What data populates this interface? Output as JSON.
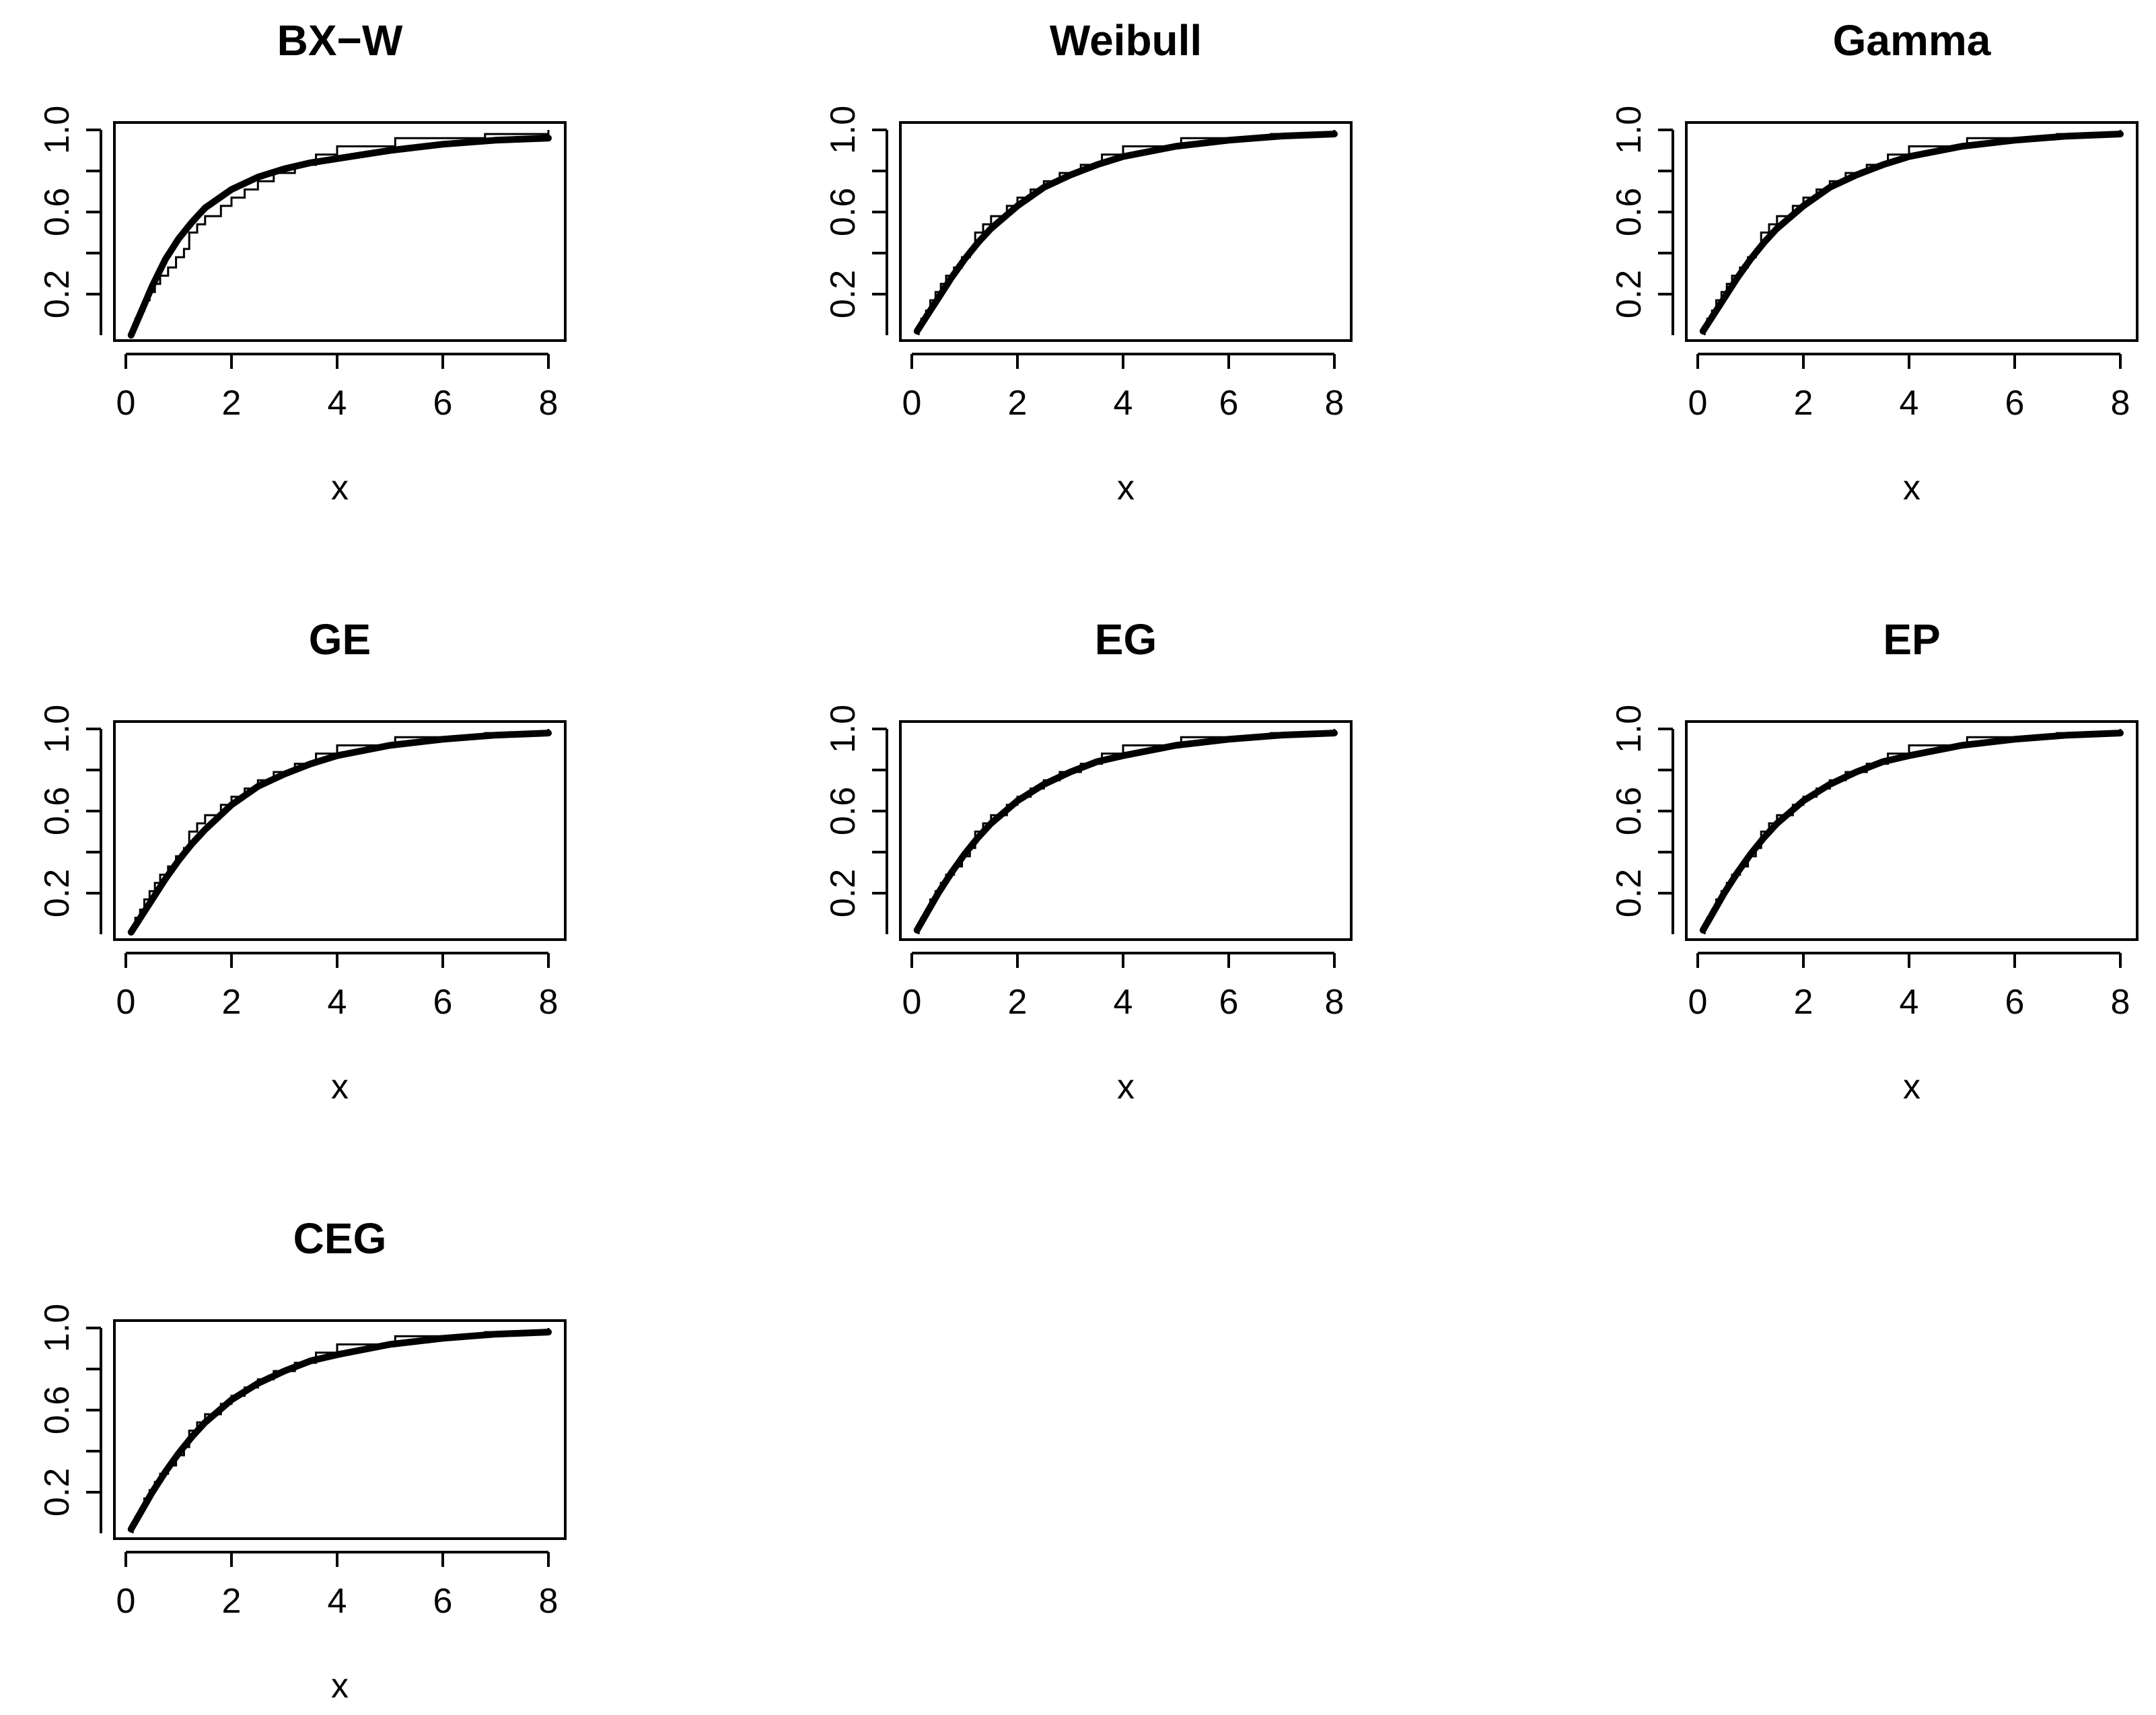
{
  "figure": {
    "panel_count": 7,
    "layout": "3x3 grid (7 panels)"
  },
  "chart_data": [
    {
      "type": "line",
      "title": "BX−W",
      "xlabel": "x",
      "ylabel": "",
      "xlim": [
        0,
        8
      ],
      "ylim": [
        0,
        1
      ],
      "xticks": [
        "0",
        "2",
        "4",
        "6",
        "8"
      ],
      "yticks": [
        "0.2",
        "0.6",
        "1.0"
      ],
      "series": [
        {
          "style": "empirical step",
          "x": [
            0.13,
            0.18,
            0.27,
            0.35,
            0.45,
            0.55,
            0.65,
            0.8,
            0.95,
            1.1,
            1.2,
            1.35,
            1.5,
            1.8,
            2.0,
            2.25,
            2.5,
            2.8,
            3.2,
            3.6,
            4.0,
            5.1,
            6.8,
            8.0
          ],
          "y": [
            0.04,
            0.08,
            0.12,
            0.17,
            0.21,
            0.25,
            0.29,
            0.33,
            0.38,
            0.42,
            0.5,
            0.54,
            0.58,
            0.63,
            0.67,
            0.71,
            0.75,
            0.79,
            0.83,
            0.88,
            0.92,
            0.96,
            0.98,
            1.0
          ]
        },
        {
          "style": "fitted CDF",
          "x": [
            0.1,
            0.3,
            0.5,
            0.75,
            1.0,
            1.25,
            1.5,
            2.0,
            2.5,
            3.0,
            3.5,
            4.0,
            5.0,
            6.0,
            7.0,
            8.0
          ],
          "y": [
            0.0,
            0.12,
            0.24,
            0.37,
            0.47,
            0.55,
            0.62,
            0.71,
            0.77,
            0.81,
            0.84,
            0.86,
            0.9,
            0.93,
            0.95,
            0.96
          ]
        }
      ]
    },
    {
      "type": "line",
      "title": "Weibull",
      "xlabel": "x",
      "ylabel": "",
      "xlim": [
        0,
        8
      ],
      "ylim": [
        0,
        1
      ],
      "xticks": [
        "0",
        "2",
        "4",
        "6",
        "8"
      ],
      "yticks": [
        "0.2",
        "0.6",
        "1.0"
      ],
      "series": [
        {
          "style": "empirical step",
          "x": [
            0.13,
            0.18,
            0.27,
            0.35,
            0.45,
            0.55,
            0.65,
            0.8,
            0.95,
            1.1,
            1.2,
            1.35,
            1.5,
            1.8,
            2.0,
            2.25,
            2.5,
            2.8,
            3.2,
            3.6,
            4.0,
            5.1,
            6.8,
            8.0
          ],
          "y": [
            0.04,
            0.08,
            0.12,
            0.17,
            0.21,
            0.25,
            0.29,
            0.33,
            0.38,
            0.42,
            0.5,
            0.54,
            0.58,
            0.63,
            0.67,
            0.71,
            0.75,
            0.79,
            0.83,
            0.88,
            0.92,
            0.96,
            0.98,
            1.0
          ]
        },
        {
          "style": "fitted CDF",
          "x": [
            0.1,
            0.3,
            0.5,
            0.75,
            1.0,
            1.25,
            1.5,
            2.0,
            2.5,
            3.0,
            3.5,
            4.0,
            5.0,
            6.0,
            7.0,
            8.0
          ],
          "y": [
            0.02,
            0.1,
            0.18,
            0.28,
            0.37,
            0.45,
            0.52,
            0.63,
            0.72,
            0.78,
            0.83,
            0.87,
            0.92,
            0.95,
            0.97,
            0.98
          ]
        }
      ]
    },
    {
      "type": "line",
      "title": "Gamma",
      "xlabel": "x",
      "ylabel": "",
      "xlim": [
        0,
        8
      ],
      "ylim": [
        0,
        1
      ],
      "xticks": [
        "0",
        "2",
        "4",
        "6",
        "8"
      ],
      "yticks": [
        "0.2",
        "0.6",
        "1.0"
      ],
      "series": [
        {
          "style": "empirical step",
          "x": [
            0.13,
            0.18,
            0.27,
            0.35,
            0.45,
            0.55,
            0.65,
            0.8,
            0.95,
            1.1,
            1.2,
            1.35,
            1.5,
            1.8,
            2.0,
            2.25,
            2.5,
            2.8,
            3.2,
            3.6,
            4.0,
            5.1,
            6.8,
            8.0
          ],
          "y": [
            0.04,
            0.08,
            0.12,
            0.17,
            0.21,
            0.25,
            0.29,
            0.33,
            0.38,
            0.42,
            0.5,
            0.54,
            0.58,
            0.63,
            0.67,
            0.71,
            0.75,
            0.79,
            0.83,
            0.88,
            0.92,
            0.96,
            0.98,
            1.0
          ]
        },
        {
          "style": "fitted CDF",
          "x": [
            0.1,
            0.3,
            0.5,
            0.75,
            1.0,
            1.25,
            1.5,
            2.0,
            2.5,
            3.0,
            3.5,
            4.0,
            5.0,
            6.0,
            7.0,
            8.0
          ],
          "y": [
            0.02,
            0.1,
            0.18,
            0.28,
            0.37,
            0.45,
            0.52,
            0.63,
            0.72,
            0.78,
            0.83,
            0.87,
            0.92,
            0.95,
            0.97,
            0.98
          ]
        }
      ]
    },
    {
      "type": "line",
      "title": "GE",
      "xlabel": "x",
      "ylabel": "",
      "xlim": [
        0,
        8
      ],
      "ylim": [
        0,
        1
      ],
      "xticks": [
        "0",
        "2",
        "4",
        "6",
        "8"
      ],
      "yticks": [
        "0.2",
        "0.6",
        "1.0"
      ],
      "series": [
        {
          "style": "empirical step",
          "x": [
            0.13,
            0.18,
            0.27,
            0.35,
            0.45,
            0.55,
            0.65,
            0.8,
            0.95,
            1.1,
            1.2,
            1.35,
            1.5,
            1.8,
            2.0,
            2.25,
            2.5,
            2.8,
            3.2,
            3.6,
            4.0,
            5.1,
            6.8,
            8.0
          ],
          "y": [
            0.04,
            0.08,
            0.12,
            0.17,
            0.21,
            0.25,
            0.29,
            0.33,
            0.38,
            0.42,
            0.5,
            0.54,
            0.58,
            0.63,
            0.67,
            0.71,
            0.75,
            0.79,
            0.83,
            0.88,
            0.92,
            0.96,
            0.98,
            1.0
          ]
        },
        {
          "style": "fitted CDF",
          "x": [
            0.1,
            0.3,
            0.5,
            0.75,
            1.0,
            1.25,
            1.5,
            2.0,
            2.5,
            3.0,
            3.5,
            4.0,
            5.0,
            6.0,
            7.0,
            8.0
          ],
          "y": [
            0.01,
            0.09,
            0.17,
            0.27,
            0.36,
            0.44,
            0.51,
            0.63,
            0.72,
            0.78,
            0.83,
            0.87,
            0.92,
            0.95,
            0.97,
            0.98
          ]
        }
      ]
    },
    {
      "type": "line",
      "title": "EG",
      "xlabel": "x",
      "ylabel": "",
      "xlim": [
        0,
        8
      ],
      "ylim": [
        0,
        1
      ],
      "xticks": [
        "0",
        "2",
        "4",
        "6",
        "8"
      ],
      "yticks": [
        "0.2",
        "0.6",
        "1.0"
      ],
      "series": [
        {
          "style": "empirical step",
          "x": [
            0.13,
            0.18,
            0.27,
            0.35,
            0.45,
            0.55,
            0.65,
            0.8,
            0.95,
            1.1,
            1.2,
            1.35,
            1.5,
            1.8,
            2.0,
            2.25,
            2.5,
            2.8,
            3.2,
            3.6,
            4.0,
            5.1,
            6.8,
            8.0
          ],
          "y": [
            0.04,
            0.08,
            0.12,
            0.17,
            0.21,
            0.25,
            0.29,
            0.33,
            0.38,
            0.42,
            0.5,
            0.54,
            0.58,
            0.63,
            0.67,
            0.71,
            0.75,
            0.79,
            0.83,
            0.88,
            0.92,
            0.96,
            0.98,
            1.0
          ]
        },
        {
          "style": "fitted CDF",
          "x": [
            0.1,
            0.3,
            0.5,
            0.75,
            1.0,
            1.25,
            1.5,
            2.0,
            2.5,
            3.0,
            3.5,
            4.0,
            5.0,
            6.0,
            7.0,
            8.0
          ],
          "y": [
            0.02,
            0.11,
            0.2,
            0.3,
            0.39,
            0.47,
            0.54,
            0.65,
            0.73,
            0.79,
            0.84,
            0.87,
            0.92,
            0.95,
            0.97,
            0.98
          ]
        }
      ]
    },
    {
      "type": "line",
      "title": "EP",
      "xlabel": "x",
      "ylabel": "",
      "xlim": [
        0,
        8
      ],
      "ylim": [
        0,
        1
      ],
      "xticks": [
        "0",
        "2",
        "4",
        "6",
        "8"
      ],
      "yticks": [
        "0.2",
        "0.6",
        "1.0"
      ],
      "series": [
        {
          "style": "empirical step",
          "x": [
            0.13,
            0.18,
            0.27,
            0.35,
            0.45,
            0.55,
            0.65,
            0.8,
            0.95,
            1.1,
            1.2,
            1.35,
            1.5,
            1.8,
            2.0,
            2.25,
            2.5,
            2.8,
            3.2,
            3.6,
            4.0,
            5.1,
            6.8,
            8.0
          ],
          "y": [
            0.04,
            0.08,
            0.12,
            0.17,
            0.21,
            0.25,
            0.29,
            0.33,
            0.38,
            0.42,
            0.5,
            0.54,
            0.58,
            0.63,
            0.67,
            0.71,
            0.75,
            0.79,
            0.83,
            0.88,
            0.92,
            0.96,
            0.98,
            1.0
          ]
        },
        {
          "style": "fitted CDF",
          "x": [
            0.1,
            0.3,
            0.5,
            0.75,
            1.0,
            1.25,
            1.5,
            2.0,
            2.5,
            3.0,
            3.5,
            4.0,
            5.0,
            6.0,
            7.0,
            8.0
          ],
          "y": [
            0.02,
            0.11,
            0.2,
            0.3,
            0.39,
            0.47,
            0.54,
            0.65,
            0.73,
            0.79,
            0.84,
            0.87,
            0.92,
            0.95,
            0.97,
            0.98
          ]
        }
      ]
    },
    {
      "type": "line",
      "title": "CEG",
      "xlabel": "x",
      "ylabel": "",
      "xlim": [
        0,
        8
      ],
      "ylim": [
        0,
        1
      ],
      "xticks": [
        "0",
        "2",
        "4",
        "6",
        "8"
      ],
      "yticks": [
        "0.2",
        "0.6",
        "1.0"
      ],
      "series": [
        {
          "style": "empirical step",
          "x": [
            0.13,
            0.18,
            0.27,
            0.35,
            0.45,
            0.55,
            0.65,
            0.8,
            0.95,
            1.1,
            1.2,
            1.35,
            1.5,
            1.8,
            2.0,
            2.25,
            2.5,
            2.8,
            3.2,
            3.6,
            4.0,
            5.1,
            6.8,
            8.0
          ],
          "y": [
            0.04,
            0.08,
            0.12,
            0.17,
            0.21,
            0.25,
            0.29,
            0.33,
            0.38,
            0.42,
            0.5,
            0.54,
            0.58,
            0.63,
            0.67,
            0.71,
            0.75,
            0.79,
            0.83,
            0.88,
            0.92,
            0.96,
            0.98,
            1.0
          ]
        },
        {
          "style": "fitted CDF",
          "x": [
            0.1,
            0.3,
            0.5,
            0.75,
            1.0,
            1.25,
            1.5,
            2.0,
            2.5,
            3.0,
            3.5,
            4.0,
            5.0,
            6.0,
            7.0,
            8.0
          ],
          "y": [
            0.02,
            0.11,
            0.2,
            0.3,
            0.39,
            0.47,
            0.54,
            0.65,
            0.73,
            0.79,
            0.84,
            0.87,
            0.92,
            0.95,
            0.97,
            0.98
          ]
        }
      ]
    }
  ]
}
